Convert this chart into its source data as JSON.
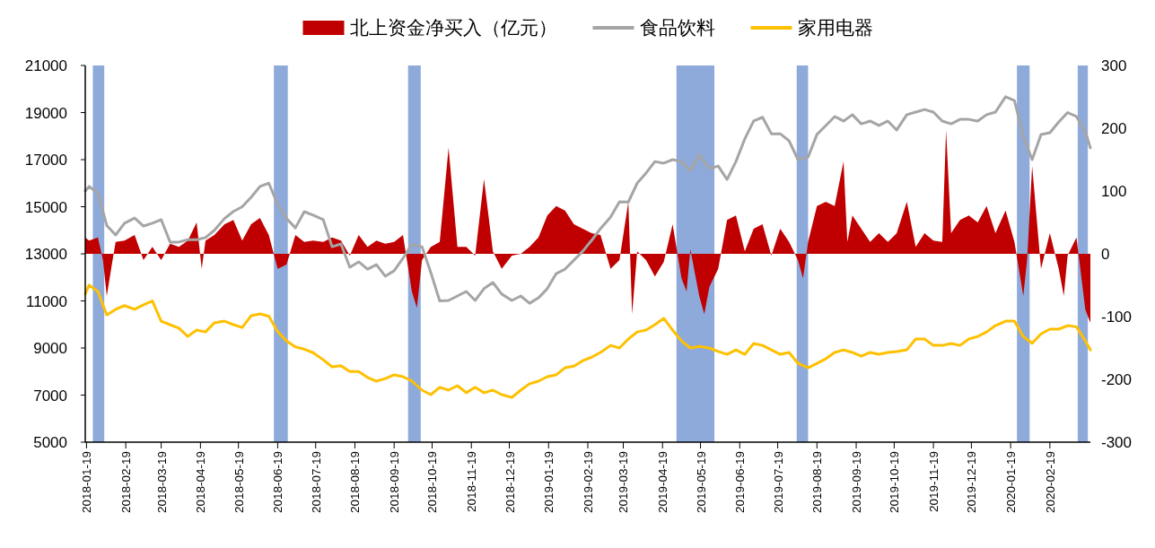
{
  "chart_data": {
    "type": "line",
    "x": [
      "2018-01-18",
      "2018-01-21",
      "2018-01-28",
      "2018-02-04",
      "2018-02-11",
      "2018-02-18",
      "2018-02-26",
      "2018-03-05",
      "2018-03-12",
      "2018-03-19",
      "2018-03-26",
      "2018-04-02",
      "2018-04-09",
      "2018-04-16",
      "2018-04-23",
      "2018-04-30",
      "2018-05-08",
      "2018-05-15",
      "2018-05-22",
      "2018-05-29",
      "2018-06-05",
      "2018-06-12",
      "2018-06-19",
      "2018-06-26",
      "2018-07-03",
      "2018-07-10",
      "2018-07-17",
      "2018-07-25",
      "2018-08-01",
      "2018-08-08",
      "2018-08-15",
      "2018-08-22",
      "2018-08-29",
      "2018-09-05",
      "2018-09-12",
      "2018-09-19",
      "2018-09-26",
      "2018-10-03",
      "2018-10-11",
      "2018-10-18",
      "2018-10-25",
      "2018-11-01",
      "2018-11-08",
      "2018-11-15",
      "2018-11-22",
      "2018-11-29",
      "2018-12-06",
      "2018-12-13",
      "2018-12-21",
      "2018-12-28",
      "2019-01-04",
      "2019-01-11",
      "2019-01-18",
      "2019-01-25",
      "2019-02-01",
      "2019-02-08",
      "2019-02-15",
      "2019-02-22",
      "2019-03-01",
      "2019-03-09",
      "2019-03-16",
      "2019-03-23",
      "2019-03-30",
      "2019-04-06",
      "2019-04-13",
      "2019-04-20",
      "2019-04-27",
      "2019-05-04",
      "2019-05-11",
      "2019-05-18",
      "2019-05-26",
      "2019-06-02",
      "2019-06-09",
      "2019-06-16",
      "2019-06-23",
      "2019-06-30",
      "2019-07-07",
      "2019-07-14",
      "2019-07-21",
      "2019-07-28",
      "2019-08-04",
      "2019-08-12",
      "2019-08-19",
      "2019-08-26",
      "2019-09-02",
      "2019-09-09",
      "2019-09-16",
      "2019-09-23",
      "2019-09-30",
      "2019-10-07",
      "2019-10-14",
      "2019-10-21",
      "2019-10-29",
      "2019-11-05",
      "2019-11-12",
      "2019-11-19",
      "2019-11-26",
      "2019-12-03",
      "2019-12-10",
      "2019-12-17",
      "2019-12-24",
      "2019-12-31",
      "2020-01-07",
      "2020-01-15",
      "2020-01-22",
      "2020-01-29",
      "2020-02-05",
      "2020-02-12",
      "2020-02-19",
      "2020-02-26",
      "2020-03-04",
      "2020-03-11",
      "2020-03-18",
      "2020-03-22"
    ],
    "series": [
      {
        "name": "北上资金净买入（亿元）",
        "type": "area",
        "axis": "y2",
        "color": "#c00000",
        "x": [
          "2018-01-18",
          "2018-01-21",
          "2018-01-28",
          "2018-02-01",
          "2018-02-04",
          "2018-02-08",
          "2018-02-11",
          "2018-02-18",
          "2018-02-26",
          "2018-03-05",
          "2018-03-12",
          "2018-03-19",
          "2018-03-26",
          "2018-04-02",
          "2018-04-09",
          "2018-04-16",
          "2018-04-20",
          "2018-04-23",
          "2018-04-30",
          "2018-05-08",
          "2018-05-15",
          "2018-05-22",
          "2018-05-29",
          "2018-06-05",
          "2018-06-12",
          "2018-06-19",
          "2018-06-26",
          "2018-07-03",
          "2018-07-10",
          "2018-07-17",
          "2018-07-25",
          "2018-08-01",
          "2018-08-08",
          "2018-08-15",
          "2018-08-22",
          "2018-08-29",
          "2018-09-05",
          "2018-09-12",
          "2018-09-19",
          "2018-09-26",
          "2018-10-03",
          "2018-10-07",
          "2018-10-11",
          "2018-10-18",
          "2018-10-25",
          "2018-11-01",
          "2018-11-08",
          "2018-11-15",
          "2018-11-22",
          "2018-11-29",
          "2018-12-06",
          "2018-12-13",
          "2018-12-21",
          "2018-12-28",
          "2019-01-04",
          "2019-01-11",
          "2019-01-18",
          "2019-01-25",
          "2019-02-01",
          "2019-02-08",
          "2019-02-15",
          "2019-02-22",
          "2019-03-01",
          "2019-03-09",
          "2019-03-16",
          "2019-03-23",
          "2019-03-26",
          "2019-03-30",
          "2019-04-06",
          "2019-04-13",
          "2019-04-20",
          "2019-04-27",
          "2019-05-04",
          "2019-05-08",
          "2019-05-11",
          "2019-05-18",
          "2019-05-22",
          "2019-05-26",
          "2019-06-02",
          "2019-06-09",
          "2019-06-16",
          "2019-06-23",
          "2019-06-30",
          "2019-07-07",
          "2019-07-14",
          "2019-07-21",
          "2019-07-28",
          "2019-08-04",
          "2019-08-08",
          "2019-08-12",
          "2019-08-19",
          "2019-08-26",
          "2019-09-02",
          "2019-09-09",
          "2019-09-12",
          "2019-09-16",
          "2019-09-23",
          "2019-09-30",
          "2019-10-07",
          "2019-10-14",
          "2019-10-21",
          "2019-10-29",
          "2019-11-05",
          "2019-11-12",
          "2019-11-19",
          "2019-11-26",
          "2019-11-29",
          "2019-12-03",
          "2019-12-10",
          "2019-12-17",
          "2019-12-24",
          "2019-12-31",
          "2020-01-07",
          "2020-01-15",
          "2020-01-22",
          "2020-01-29",
          "2020-02-01",
          "2020-02-05",
          "2020-02-12",
          "2020-02-19",
          "2020-02-26",
          "2020-03-01",
          "2020-03-04",
          "2020-03-11",
          "2020-03-18",
          "2020-03-22"
        ],
        "values": [
          26,
          21,
          26,
          -10,
          -67,
          -17,
          19,
          21,
          30,
          -10,
          11,
          -10,
          16,
          11,
          21,
          50,
          -24,
          21,
          30,
          47,
          54,
          21,
          47,
          57,
          30,
          -24,
          -17,
          30,
          19,
          21,
          19,
          26,
          21,
          -3,
          30,
          11,
          21,
          16,
          19,
          30,
          -60,
          -86,
          -10,
          11,
          19,
          169,
          11,
          11,
          -3,
          119,
          4,
          -24,
          -3,
          0,
          11,
          26,
          61,
          76,
          69,
          47,
          40,
          33,
          30,
          -24,
          -10,
          83,
          -96,
          4,
          -10,
          -36,
          -13,
          47,
          -39,
          -60,
          7,
          -67,
          -96,
          -53,
          -24,
          54,
          61,
          4,
          40,
          47,
          -3,
          40,
          19,
          -10,
          -39,
          19,
          76,
          83,
          76,
          147,
          19,
          61,
          40,
          19,
          33,
          19,
          33,
          83,
          11,
          33,
          21,
          19,
          197,
          33,
          54,
          61,
          50,
          76,
          33,
          69,
          19,
          -67,
          -10,
          140,
          -24,
          33,
          -24,
          -67,
          -3,
          26,
          -89,
          -110
        ]
      },
      {
        "name": "食品饮料",
        "color": "#a5a5a5",
        "values": [
          15670,
          15860,
          15590,
          14200,
          13800,
          14300,
          14520,
          14180,
          14300,
          14450,
          13500,
          13500,
          13600,
          13600,
          13690,
          14000,
          14500,
          14800,
          15000,
          15400,
          15860,
          16000,
          15100,
          14500,
          14100,
          14790,
          14640,
          14450,
          13300,
          13420,
          12430,
          12660,
          12350,
          12540,
          12050,
          12280,
          12810,
          13400,
          13300,
          12200,
          11000,
          11020,
          11210,
          11400,
          11020,
          11520,
          11780,
          11290,
          11020,
          11210,
          10900,
          11130,
          11520,
          12160,
          12350,
          12730,
          13110,
          13570,
          14070,
          14560,
          15210,
          15200,
          16000,
          16430,
          16920,
          16850,
          17000,
          16920,
          16540,
          17200,
          16620,
          16730,
          16160,
          16920,
          17880,
          18640,
          18800,
          18100,
          18100,
          17800,
          17000,
          17110,
          18070,
          18450,
          18830,
          18640,
          18910,
          18520,
          18640,
          18450,
          18640,
          18260,
          18910,
          19020,
          19130,
          19020,
          18640,
          18520,
          18710,
          18710,
          18640,
          18910,
          19020,
          19670,
          19510,
          18000,
          17000,
          18070,
          18140,
          18600,
          19000,
          18830,
          18200,
          17500
        ]
      },
      {
        "name": "家用电器",
        "color": "#ffc000",
        "values": [
          11290,
          11670,
          11400,
          10400,
          10640,
          10800,
          10640,
          10830,
          11000,
          10140,
          9990,
          9840,
          9490,
          9760,
          9680,
          10070,
          10140,
          9990,
          9870,
          10370,
          10450,
          10350,
          9700,
          9300,
          9050,
          8950,
          8800,
          8500,
          8200,
          8250,
          8000,
          8000,
          7750,
          7590,
          7700,
          7860,
          7780,
          7600,
          7210,
          7020,
          7330,
          7210,
          7400,
          7100,
          7330,
          7100,
          7210,
          7020,
          6900,
          7210,
          7480,
          7590,
          7780,
          7860,
          8160,
          8230,
          8460,
          8610,
          8810,
          9110,
          9000,
          9380,
          9680,
          9760,
          9990,
          10260,
          9760,
          9300,
          9000,
          9070,
          9000,
          8850,
          8730,
          8920,
          8730,
          9190,
          9110,
          8920,
          8730,
          8810,
          8350,
          8160,
          8350,
          8540,
          8810,
          8920,
          8810,
          8650,
          8810,
          8730,
          8810,
          8850,
          8920,
          9380,
          9380,
          9110,
          9110,
          9190,
          9110,
          9380,
          9490,
          9680,
          9950,
          10140,
          10140,
          9490,
          9200,
          9600,
          9800,
          9800,
          9950,
          9900,
          9300,
          8920
        ]
      }
    ],
    "xlim": [
      "2018-01-18",
      "2020-03-22"
    ],
    "xticks": [
      "2018-01-19",
      "2018-02-19",
      "2018-03-19",
      "2018-04-19",
      "2018-05-19",
      "2018-06-19",
      "2018-07-19",
      "2018-08-19",
      "2018-09-19",
      "2018-10-19",
      "2018-11-19",
      "2018-12-19",
      "2019-01-19",
      "2019-02-19",
      "2019-03-19",
      "2019-04-19",
      "2019-05-19",
      "2019-06-19",
      "2019-07-19",
      "2019-08-19",
      "2019-09-19",
      "2019-10-19",
      "2019-11-19",
      "2019-12-19",
      "2020-01-19",
      "2020-02-19"
    ],
    "ylim": [
      5000,
      21000
    ],
    "yticks": [
      5000,
      7000,
      9000,
      11000,
      13000,
      15000,
      17000,
      19000,
      21000
    ],
    "y2lim": [
      -300,
      300
    ],
    "y2ticks": [
      -300,
      -200,
      -100,
      0,
      100,
      200,
      300
    ],
    "bands": [
      {
        "axis": "x",
        "from": "2018-01-24",
        "to": "2018-02-02",
        "color": "#8eaadb"
      },
      {
        "axis": "x",
        "from": "2018-06-16",
        "to": "2018-06-27",
        "color": "#8eaadb"
      },
      {
        "axis": "x",
        "from": "2018-09-30",
        "to": "2018-10-10",
        "color": "#8eaadb"
      },
      {
        "axis": "x",
        "from": "2019-04-30",
        "to": "2019-05-30",
        "color": "#8eaadb"
      },
      {
        "axis": "x",
        "from": "2019-08-03",
        "to": "2019-08-12",
        "color": "#8eaadb"
      },
      {
        "axis": "x",
        "from": "2020-01-24",
        "to": "2020-02-03",
        "color": "#8eaadb"
      },
      {
        "axis": "x",
        "from": "2020-03-12",
        "to": "2020-03-20",
        "color": "#8eaadb"
      }
    ],
    "legend": "top"
  }
}
